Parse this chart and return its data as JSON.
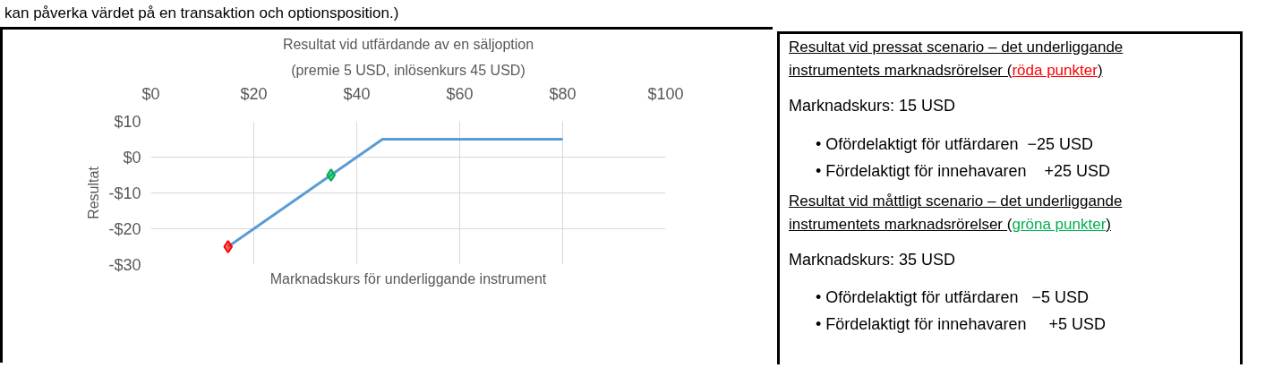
{
  "chart_data": [
    {
      "type": "line",
      "title": "Resultat vid utfärdande av en säljoption",
      "subtitle": "(premie 5 USD, inlösenkurs 45 USD)",
      "xlabel": "Marknadskurs för underliggande instrument",
      "ylabel": "Resultat",
      "annotations": [
        "kan påverka värdet på en transaktion och optionsposition.)"
      ],
      "series": [
        {
          "type": "line",
          "color": "#5b9bd5",
          "x": [
            15,
            45,
            80
          ],
          "values": [
            -25,
            5,
            5
          ]
        },
        {
          "type": "scatter",
          "color": "#ff0000",
          "x": [
            15
          ],
          "values": [
            -25
          ],
          "marker": "diamond"
        },
        {
          "type": "scatter",
          "color": "#00b050",
          "x": [
            35
          ],
          "values": [
            -5
          ],
          "marker": "diamond"
        }
      ],
      "xlim": [
        0,
        100
      ],
      "xticks": [
        {
          "value": 0,
          "label": "$0"
        },
        {
          "value": 20,
          "label": "$20"
        },
        {
          "value": 40,
          "label": "$40"
        },
        {
          "value": 60,
          "label": "$60"
        },
        {
          "value": 80,
          "label": "$80"
        },
        {
          "value": 100,
          "label": "$100"
        }
      ],
      "ylim": [
        -30,
        10
      ],
      "yticks": [
        {
          "value": -30,
          "label": "-$30"
        },
        {
          "value": -20,
          "label": "-$20"
        },
        {
          "value": -10,
          "label": "-$10"
        },
        {
          "value": 0,
          "label": "$0"
        },
        {
          "value": 10,
          "label": "$10"
        }
      ],
      "grid": true,
      "line_style": "solid"
    },
    {
      "type": "other",
      "annotations": [
        "Resultat vid pressat scenario – det underliggande instrumentets marknadsrörelser (",
        "röda punkter",
        ")",
        "Marknadskurs: 15 USD",
        "• Ofördelaktigt för utfärdaren  −25 USD",
        "• Fördelaktigt för innehavaren    +25 USD",
        "Resultat vid måttligt scenario – det underliggande instrumentets marknadsrörelser (",
        "gröna punkter",
        ")",
        "Marknadskurs: 35 USD",
        "• Ofördelaktigt för utfärdaren   −5 USD",
        "• Fördelaktigt för innehavaren     +5 USD"
      ],
      "colors": [
        null,
        "#ff0000",
        null,
        null,
        null,
        null,
        null,
        "#00b050",
        null,
        null,
        null,
        null
      ]
    }
  ]
}
